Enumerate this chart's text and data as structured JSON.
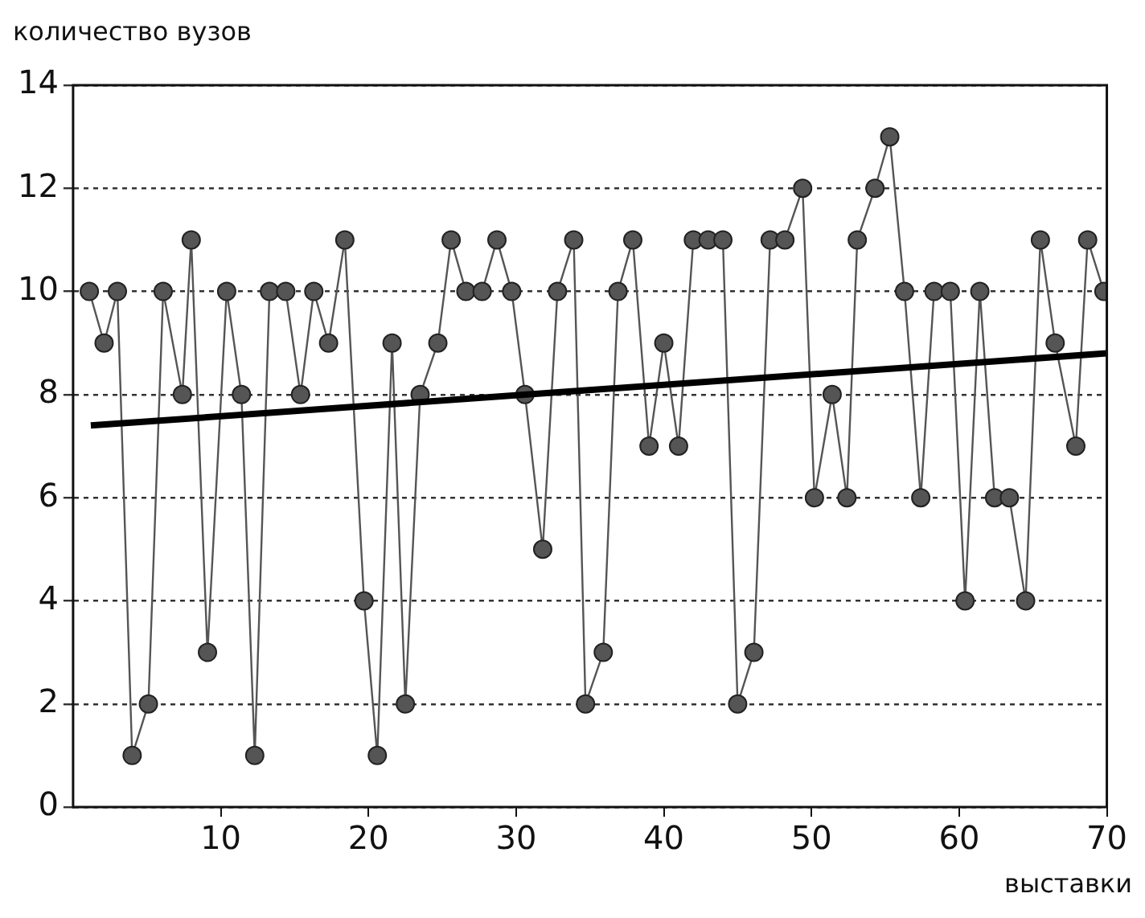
{
  "chart_data": {
    "type": "line",
    "ylabel": "количество вузов",
    "xlabel": "выставки",
    "xlim": [
      0,
      70
    ],
    "xticks": [
      10,
      20,
      30,
      40,
      50,
      60,
      70
    ],
    "ylim": [
      0,
      14
    ],
    "yticks": [
      0,
      2,
      4,
      6,
      8,
      10,
      12,
      14
    ],
    "grid": "y",
    "legend": false,
    "series": [
      {
        "type": "line",
        "color": "#555555",
        "marker": "circle",
        "line_style": "solid",
        "x": [
          1.1,
          2.1,
          3,
          4,
          5.1,
          6.1,
          7.4,
          8,
          9.1,
          10.4,
          11.4,
          12.3,
          13.3,
          14.4,
          15.4,
          16.3,
          17.3,
          18.4,
          19.7,
          20.6,
          21.6,
          22.5,
          23.5,
          24.7,
          25.6,
          26.6,
          27.7,
          28.7,
          29.7,
          30.6,
          31.8,
          32.8,
          33.9,
          34.7,
          35.9,
          36.9,
          37.9,
          39,
          40,
          41,
          42,
          43,
          44,
          45,
          46.1,
          47.2,
          48.2,
          49.4,
          50.2,
          51.4,
          52.4,
          53.1,
          54.3,
          55.3,
          56.3,
          57.4,
          58.3,
          59.4,
          60.4,
          61.4,
          62.4,
          63.4,
          64.5,
          65.5,
          66.5,
          67.9,
          68.7,
          69.8
        ],
        "values": [
          10,
          9,
          10,
          1,
          2,
          10,
          8,
          11,
          3,
          10,
          8,
          1,
          10,
          10,
          8,
          10,
          9,
          11,
          4,
          1,
          9,
          2,
          8,
          9,
          11,
          10,
          10,
          11,
          10,
          8,
          5,
          10,
          11,
          2,
          3,
          10,
          11,
          7,
          9,
          7,
          11,
          11,
          11,
          2,
          3,
          11,
          11,
          12,
          6,
          8,
          6,
          11,
          12,
          13,
          10,
          6,
          10,
          10,
          4,
          10,
          6,
          6,
          4,
          11,
          9,
          7,
          11,
          10
        ]
      },
      {
        "type": "line",
        "color": "#000000",
        "marker": "none",
        "line_style": "solid",
        "x": [
          1.2,
          70
        ],
        "values": [
          7.4,
          8.8
        ]
      }
    ]
  }
}
